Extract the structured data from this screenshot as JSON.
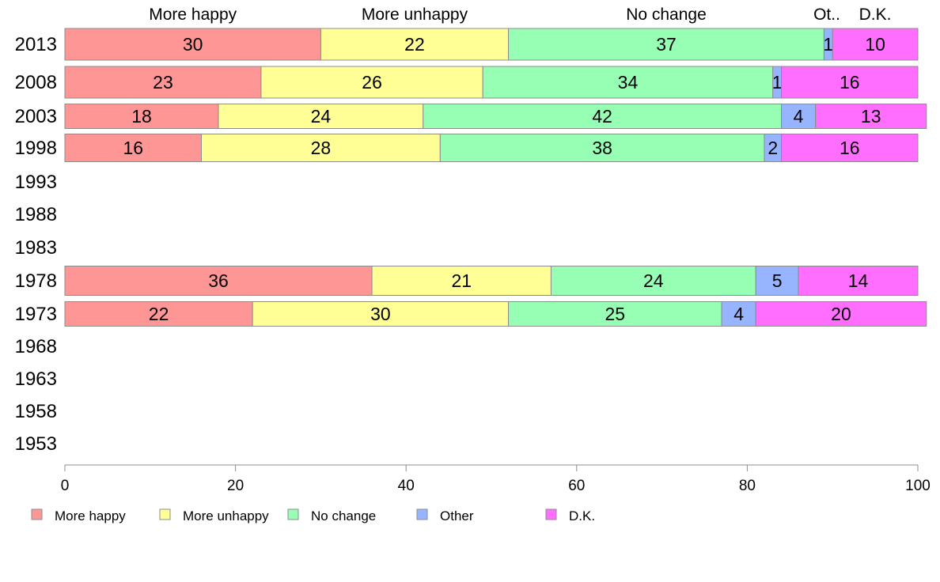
{
  "chart_data": {
    "type": "bar",
    "orientation": "horizontal",
    "stacked": true,
    "title": "",
    "xlabel": "",
    "ylabel": "",
    "xlim": [
      0,
      100
    ],
    "xticks": [
      "0",
      "20",
      "40",
      "60",
      "80",
      "100"
    ],
    "categories": [
      "2013",
      "2008",
      "2003",
      "1998",
      "1993",
      "1988",
      "1983",
      "1978",
      "1973",
      "1968",
      "1963",
      "1958",
      "1953"
    ],
    "top_labels": [
      "More happy",
      "More unhappy",
      "No change",
      "Ot..",
      "D.K."
    ],
    "series": [
      {
        "name": "More happy",
        "color": "#ff9696",
        "values": [
          30,
          23,
          18,
          16,
          null,
          null,
          null,
          36,
          22,
          null,
          null,
          null,
          null
        ]
      },
      {
        "name": "More unhappy",
        "color": "#ffff96",
        "values": [
          22,
          26,
          24,
          28,
          null,
          null,
          null,
          21,
          30,
          null,
          null,
          null,
          null
        ]
      },
      {
        "name": "No change",
        "color": "#96ffb4",
        "values": [
          37,
          34,
          42,
          38,
          null,
          null,
          null,
          24,
          25,
          null,
          null,
          null,
          null
        ]
      },
      {
        "name": "Other",
        "color": "#96b4ff",
        "values": [
          1,
          1,
          4,
          2,
          null,
          null,
          null,
          5,
          4,
          null,
          null,
          null,
          null
        ]
      },
      {
        "name": "D.K.",
        "color": "#ff6eff",
        "values": [
          10,
          16,
          13,
          16,
          null,
          null,
          null,
          14,
          20,
          null,
          null,
          null,
          null
        ]
      }
    ],
    "legend": {
      "position": "bottom-left"
    },
    "grid": false
  }
}
